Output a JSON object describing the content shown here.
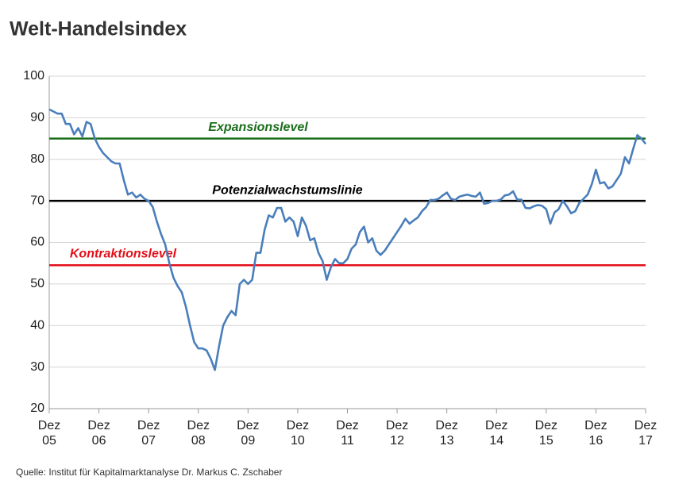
{
  "chart_data": {
    "type": "line",
    "title": "Welt-Handelsindex",
    "source": "Quelle: Institut für Kapitalmarktanalyse Dr. Markus C. Zschaber",
    "categories": [
      "Dez\n05",
      null,
      null,
      null,
      null,
      null,
      null,
      null,
      null,
      null,
      null,
      null,
      "Dez\n06",
      null,
      null,
      null,
      null,
      null,
      null,
      null,
      null,
      null,
      null,
      null,
      "Dez\n07",
      null,
      null,
      null,
      null,
      null,
      null,
      null,
      null,
      null,
      null,
      null,
      "Dez\n08",
      null,
      null,
      null,
      null,
      null,
      null,
      null,
      null,
      null,
      null,
      null,
      "Dez\n09",
      null,
      null,
      null,
      null,
      null,
      null,
      null,
      null,
      null,
      null,
      null,
      "Dez\n10",
      null,
      null,
      null,
      null,
      null,
      null,
      null,
      null,
      null,
      null,
      null,
      "Dez\n11",
      null,
      null,
      null,
      null,
      null,
      null,
      null,
      null,
      null,
      null,
      null,
      "Dez\n12",
      null,
      null,
      null,
      null,
      null,
      null,
      null,
      null,
      null,
      null,
      null,
      "Dez\n13",
      null,
      null,
      null,
      null,
      null,
      null,
      null,
      null,
      null,
      null,
      null,
      "Dez\n14",
      null,
      null,
      null,
      null,
      null,
      null,
      null,
      null,
      null,
      null,
      null,
      "Dez\n15",
      null,
      null,
      null,
      null,
      null,
      null,
      null,
      null,
      null,
      null,
      null,
      "Dez\n16",
      null,
      null,
      null,
      null,
      null,
      null,
      null,
      null,
      null,
      null,
      null,
      "Dez\n17"
    ],
    "series": [
      {
        "color": "#4a7ebb",
        "values": [
          92,
          91.5,
          91,
          91,
          88.5,
          88.5,
          86,
          87.5,
          85.5,
          89,
          88.5,
          85,
          83,
          81.5,
          80.5,
          79.5,
          79,
          79,
          75,
          71.5,
          72,
          70.8,
          71.5,
          70.5,
          70,
          68.5,
          65,
          62,
          59.5,
          55,
          51.5,
          49.5,
          48,
          44.5,
          40,
          36,
          34.5,
          34.5,
          34,
          32,
          29.3,
          35,
          40,
          42,
          43.5,
          42.5,
          50,
          51,
          50,
          51,
          57.5,
          57.5,
          63,
          66.5,
          66,
          68.3,
          68.3,
          65,
          66,
          65,
          61.5,
          66,
          64,
          60.5,
          61,
          57.5,
          55.5,
          51,
          54,
          56,
          55,
          55,
          56,
          58.5,
          59.5,
          62.5,
          63.8,
          60,
          61,
          58,
          57,
          58,
          59.5,
          61,
          62.5,
          64,
          65.7,
          64.5,
          65.3,
          66,
          67.5,
          68.5,
          70.2,
          70.2,
          70.5,
          71.3,
          72,
          70.5,
          70.2,
          71,
          71.3,
          71.5,
          71.2,
          71,
          72,
          69.3,
          69.5,
          70,
          70,
          70.3,
          71.3,
          71.5,
          72.3,
          70.3,
          70.3,
          68.3,
          68.2,
          68.7,
          69,
          68.8,
          68,
          64.5,
          67.2,
          68,
          70,
          68.7,
          67,
          67.5,
          69.5,
          70.5,
          71.5,
          74,
          77.5,
          74.2,
          74.5,
          73,
          73.5,
          75,
          76.5,
          80.5,
          79,
          82.5,
          85.8,
          85,
          83.7
        ]
      }
    ],
    "reference_lines": [
      {
        "label": "Expansionslevel",
        "value": 85,
        "color": "#1a6e1a"
      },
      {
        "label": "Potenzialwachstumslinie",
        "value": 70,
        "color": "#000000"
      },
      {
        "label": "Kontraktionslevel",
        "value": 54.5,
        "color": "#e3101a"
      }
    ],
    "ylim": [
      20,
      100
    ],
    "yticks": [
      20,
      30,
      40,
      50,
      60,
      70,
      80,
      90,
      100
    ],
    "grid": true
  }
}
